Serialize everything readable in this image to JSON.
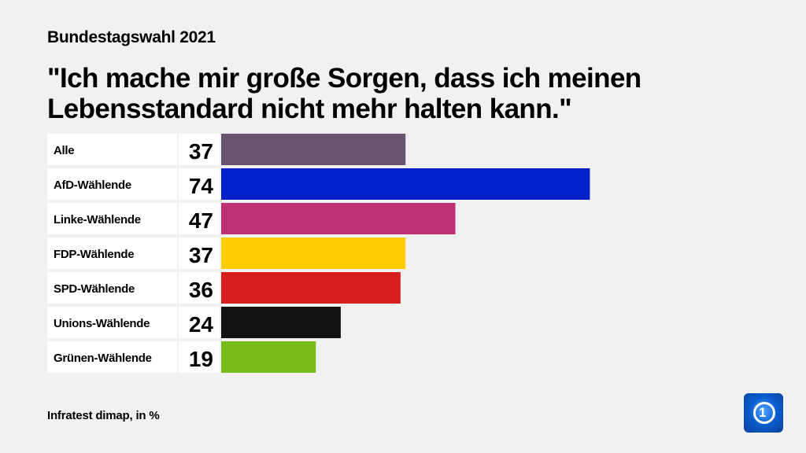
{
  "header": {
    "subtitle": "Bundestagswahl 2021",
    "title": "\"Ich mache mir große Sorgen, dass ich meinen Lebensstandard nicht mehr halten kann.\""
  },
  "chart_data": {
    "type": "bar",
    "orientation": "horizontal",
    "categories": [
      "Alle",
      "AfD-Wählende",
      "Linke-Wählende",
      "FDP-Wählende",
      "SPD-Wählende",
      "Unions-Wählende",
      "Grünen-Wählende"
    ],
    "values": [
      37,
      74,
      47,
      37,
      36,
      24,
      19
    ],
    "colors": [
      "#685371",
      "#0021c8",
      "#be3075",
      "#ffcc00",
      "#d71f1d",
      "#121212",
      "#78bc1b"
    ],
    "unit": "%",
    "xlim": [
      0,
      100
    ],
    "grid": false
  },
  "footer": {
    "source": "Infratest dimap, in %"
  },
  "logo": {
    "icon": "tagesschau-logo",
    "text": "1"
  }
}
